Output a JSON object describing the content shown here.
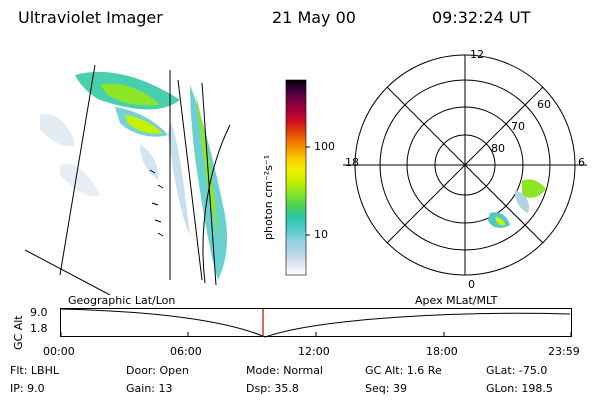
{
  "header": {
    "instrument": "Ultraviolet Imager",
    "date": "21 May 00",
    "time": "09:32:24 UT"
  },
  "colorbar": {
    "label": "photon cm⁻²s⁻¹",
    "ticks": [
      "100",
      "10"
    ],
    "scale": "log",
    "colors": [
      "#ffffff",
      "#dce6f0",
      "#b4d2e6",
      "#8cd2dc",
      "#50c8c8",
      "#28c8a0",
      "#50d250",
      "#8ce628",
      "#c8f000",
      "#f0f000",
      "#fac800",
      "#f58c00",
      "#eb5000",
      "#d2141e",
      "#aa0032",
      "#780046",
      "#3c003c",
      "#000000"
    ]
  },
  "polar": {
    "mlt_labels": [
      "12",
      "6",
      "0",
      "18"
    ],
    "lat_labels": [
      "60",
      "70",
      "80"
    ]
  },
  "altitude_panel": {
    "left_label": "Geographic Lat/Lon",
    "right_label": "Apex MLat/MLT",
    "y_axis_title": "GC Alt",
    "y_ticks": [
      "9.0",
      "1.8"
    ],
    "x_ticks": [
      "00:00",
      "06:00",
      "12:00",
      "18:00",
      "23:59"
    ],
    "marker_color": "#cc0000"
  },
  "status": {
    "flt_label": "Flt:",
    "flt_value": "LBHL",
    "ip_label": "IP:",
    "ip_value": "9.0",
    "door_label": "Door:",
    "door_value": "Open",
    "gain_label": "Gain:",
    "gain_value": "13",
    "mode_label": "Mode:",
    "mode_value": "Normal",
    "dsp_label": "Dsp:",
    "dsp_value": "35.8",
    "gcalt_label": "GC Alt:",
    "gcalt_value": "1.6 Re",
    "seq_label": "Seq:",
    "seq_value": "39",
    "glat_label": "GLat:",
    "glat_value": "-75.0",
    "glon_label": "GLon:",
    "glon_value": "198.5"
  }
}
